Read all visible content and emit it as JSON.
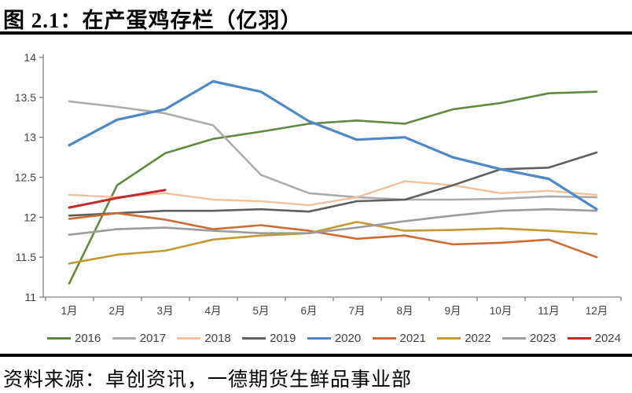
{
  "title": "图 2.1：在产蛋鸡存栏（亿羽）",
  "source": "资料来源：卓创资讯，一德期货生鲜品事业部",
  "axis_color": "#808080",
  "label_color": "#404040",
  "chart_data": {
    "type": "line",
    "title": "在产蛋鸡存栏（亿羽）",
    "xlabel": "",
    "ylabel": "",
    "categories": [
      "1月",
      "2月",
      "3月",
      "4月",
      "5月",
      "6月",
      "7月",
      "8月",
      "9月",
      "10月",
      "11月",
      "12月"
    ],
    "ylim": [
      11,
      14
    ],
    "ytick_step": 0.5,
    "ytick_labels": [
      "11",
      "11.5",
      "12",
      "12.5",
      "13",
      "13.5",
      "14"
    ],
    "grid": false,
    "legend_position": "bottom",
    "series": [
      {
        "name": "2016",
        "color": "#5f8a3d",
        "width": 2.6,
        "values": [
          11.17,
          12.4,
          12.8,
          12.98,
          13.07,
          13.17,
          13.21,
          13.17,
          13.35,
          13.43,
          13.55,
          13.57
        ]
      },
      {
        "name": "2017",
        "color": "#ababab",
        "width": 2.6,
        "values": [
          13.45,
          13.38,
          13.3,
          13.15,
          12.53,
          12.3,
          12.25,
          12.22,
          12.22,
          12.23,
          12.26,
          12.25
        ]
      },
      {
        "name": "2018",
        "color": "#f2c09a",
        "width": 2.4,
        "values": [
          12.28,
          12.25,
          12.3,
          12.22,
          12.2,
          12.15,
          12.25,
          12.45,
          12.4,
          12.3,
          12.33,
          12.28
        ]
      },
      {
        "name": "2019",
        "color": "#5f5f5f",
        "width": 2.6,
        "values": [
          12.02,
          12.05,
          12.08,
          12.08,
          12.1,
          12.07,
          12.2,
          12.22,
          12.4,
          12.6,
          12.62,
          12.81
        ]
      },
      {
        "name": "2020",
        "color": "#4f87c7",
        "width": 3.2,
        "values": [
          12.9,
          13.22,
          13.35,
          13.7,
          13.57,
          13.2,
          12.97,
          13.0,
          12.75,
          12.6,
          12.48,
          12.1
        ]
      },
      {
        "name": "2021",
        "color": "#cf6a32",
        "width": 2.6,
        "values": [
          11.98,
          12.05,
          11.97,
          11.85,
          11.9,
          11.83,
          11.73,
          11.77,
          11.66,
          11.68,
          11.72,
          11.5
        ]
      },
      {
        "name": "2022",
        "color": "#c49a2e",
        "width": 2.6,
        "values": [
          11.42,
          11.53,
          11.58,
          11.72,
          11.77,
          11.8,
          11.94,
          11.83,
          11.84,
          11.86,
          11.83,
          11.79
        ]
      },
      {
        "name": "2023",
        "color": "#9c9c9c",
        "width": 2.6,
        "values": [
          11.78,
          11.85,
          11.87,
          11.83,
          11.8,
          11.8,
          11.87,
          11.95,
          12.02,
          12.08,
          12.1,
          12.08
        ]
      },
      {
        "name": "2024",
        "color": "#c42828",
        "width": 3.0,
        "values": [
          12.12,
          12.24,
          12.34,
          null,
          null,
          null,
          null,
          null,
          null,
          null,
          null,
          null
        ]
      }
    ]
  }
}
